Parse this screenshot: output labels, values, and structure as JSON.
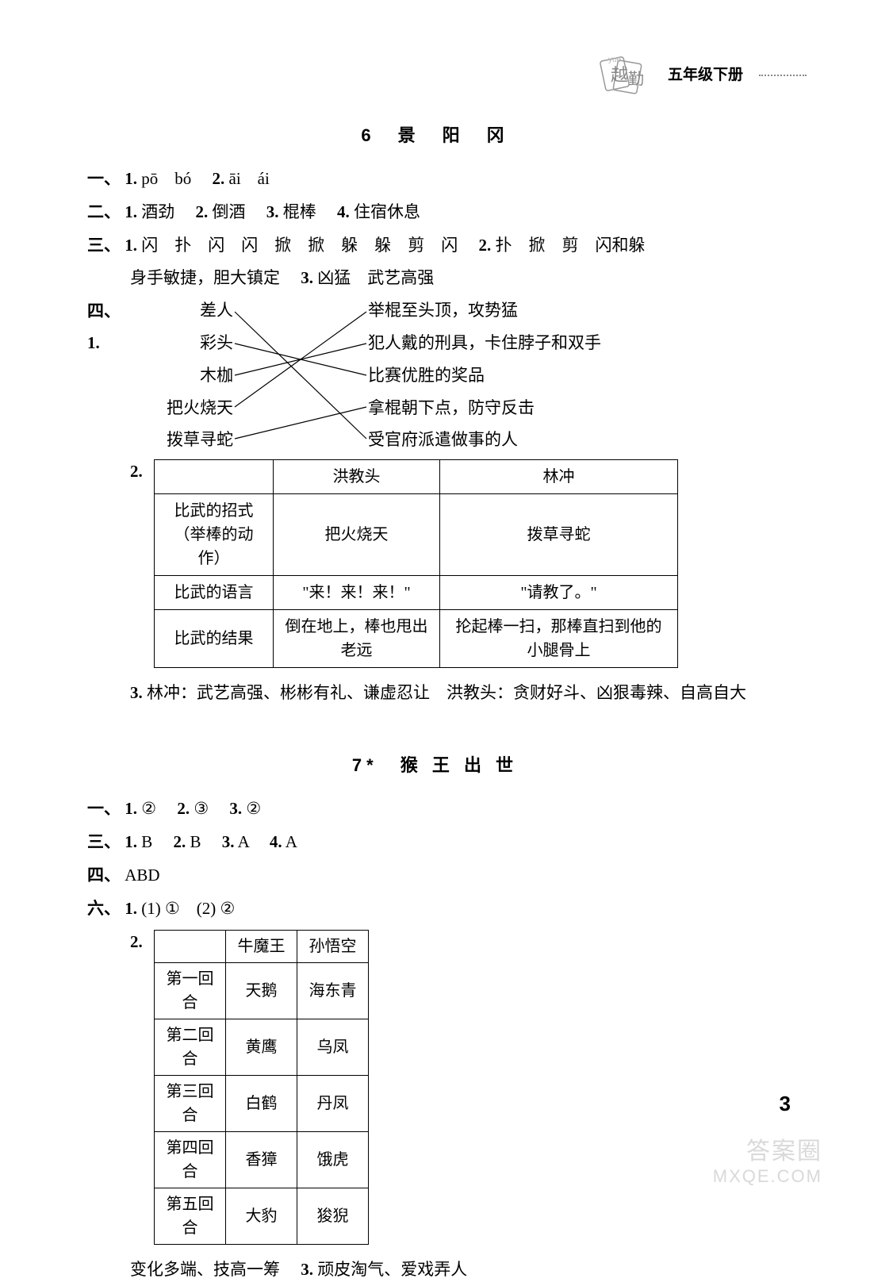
{
  "header": {
    "grade": "五年级下册"
  },
  "page_number": "3",
  "watermark": {
    "line1": "答案圈",
    "line2": "MXQE.COM"
  },
  "lesson6": {
    "title": "6　景　阳　冈",
    "q1": {
      "lead": "一、",
      "n1": "1.",
      "v1": " pō　bó　",
      "n2": "2.",
      "v2": " āi　ái"
    },
    "q2": {
      "lead": "二、",
      "n1": "1.",
      "v1": " 酒劲　",
      "n2": "2.",
      "v2": " 倒酒　",
      "n3": "3.",
      "v3": " 棍棒　",
      "n4": "4.",
      "v4": " 住宿休息"
    },
    "q3": {
      "lead": "三、",
      "n1": "1.",
      "v1": " 闪　扑　闪　闪　掀　掀　躲　躲　剪　闪　",
      "n2": "2.",
      "v2": " 扑　掀　剪　闪和躲",
      "line2_pre": "身手敏捷，胆大镇定　",
      "n3": "3.",
      "v3": " 凶猛　武艺高强"
    },
    "q4": {
      "lead": "四、",
      "n1": "1.",
      "left": [
        "差人",
        "彩头",
        "木枷",
        "把火烧天",
        "拨草寻蛇"
      ],
      "right": [
        "举棍至头顶，攻势猛",
        "犯人戴的刑具，卡住脖子和双手",
        "比赛优胜的奖品",
        "拿棍朝下点，防守反击",
        "受官府派遣做事的人"
      ],
      "lines": [
        {
          "from": 0,
          "to": 4
        },
        {
          "from": 1,
          "to": 2
        },
        {
          "from": 2,
          "to": 1
        },
        {
          "from": 3,
          "to": 0
        },
        {
          "from": 4,
          "to": 3
        }
      ]
    },
    "q4_2": {
      "n": "2.",
      "head": [
        "",
        "洪教头",
        "林冲"
      ],
      "rows": [
        [
          "比武的招式\n（举棒的动作）",
          "把火烧天",
          "拨草寻蛇"
        ],
        [
          "比武的语言",
          "\"来！来！来！\"",
          "\"请教了。\""
        ],
        [
          "比武的结果",
          "倒在地上，棒也甩出老远",
          "抡起棒一扫，那棒直扫到他的小腿骨上"
        ]
      ]
    },
    "q4_3": {
      "n": "3.",
      "v": " 林冲：武艺高强、彬彬有礼、谦虚忍让　洪教头：贪财好斗、凶狠毒辣、自高自大"
    }
  },
  "lesson7": {
    "title": "7*　猴 王 出 世",
    "q1": {
      "lead": "一、",
      "n1": "1.",
      "v1": " ②　",
      "n2": "2.",
      "v2": " ③　",
      "n3": "3.",
      "v3": " ②"
    },
    "q3": {
      "lead": "三、",
      "n1": "1.",
      "v1": " B　",
      "n2": "2.",
      "v2": " B　",
      "n3": "3.",
      "v3": " A　",
      "n4": "4.",
      "v4": " A"
    },
    "q4": {
      "lead": "四、",
      "v": "ABD"
    },
    "q6_1": {
      "lead": "六、",
      "n1": "1.",
      "v1": " (1) ①　(2) ②"
    },
    "q6_2": {
      "n": "2.",
      "head": [
        "",
        "牛魔王",
        "孙悟空"
      ],
      "rows": [
        [
          "第一回合",
          "天鹅",
          "海东青"
        ],
        [
          "第二回合",
          "黄鹰",
          "乌凤"
        ],
        [
          "第三回合",
          "白鹤",
          "丹凤"
        ],
        [
          "第四回合",
          "香獐",
          "饿虎"
        ],
        [
          "第五回合",
          "大豹",
          "狻猊"
        ]
      ]
    },
    "q6_tail": {
      "pre": "变化多端、技高一筹　",
      "n3": "3.",
      "v3": " 顽皮淘气、爱戏弄人"
    }
  }
}
